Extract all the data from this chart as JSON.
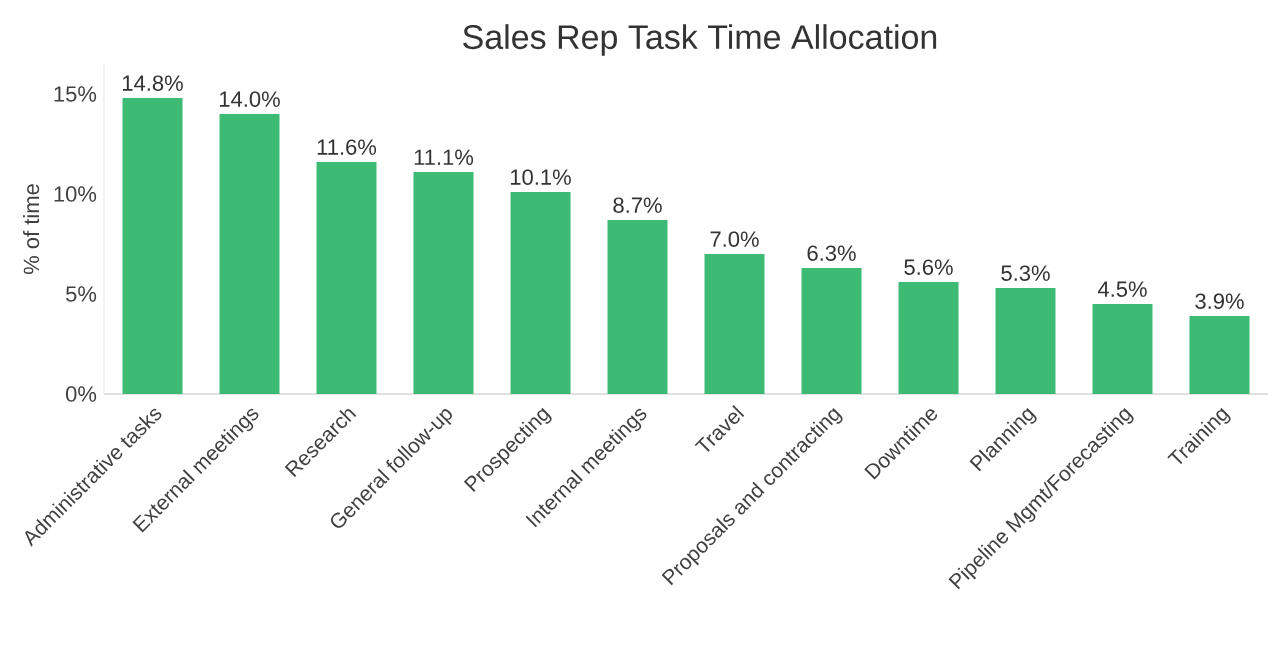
{
  "chart_data": {
    "type": "bar",
    "title": "Sales Rep Task Time Allocation",
    "ylabel": "% of time",
    "categories": [
      "Administrative tasks",
      "External meetings",
      "Research",
      "General follow-up",
      "Prospecting",
      "Internal meetings",
      "Travel",
      "Proposals and contracting",
      "Downtime",
      "Planning",
      "Pipeline Mgmt/Forecasting",
      "Training"
    ],
    "values": [
      14.8,
      14.0,
      11.6,
      11.1,
      10.1,
      8.7,
      7.0,
      6.3,
      5.6,
      5.3,
      4.5,
      3.9
    ],
    "value_labels": [
      "14.8%",
      "14.0%",
      "11.6%",
      "11.1%",
      "10.1%",
      "8.7%",
      "7.0%",
      "6.3%",
      "5.6%",
      "5.3%",
      "4.5%",
      "3.9%"
    ],
    "color": "#3dba74",
    "ylim": [
      0,
      16.5
    ],
    "yticks": [
      {
        "value": 0,
        "label": "0%"
      },
      {
        "value": 5,
        "label": "5%"
      },
      {
        "value": 10,
        "label": "10%"
      },
      {
        "value": 15,
        "label": "15%"
      }
    ],
    "grid": false
  }
}
